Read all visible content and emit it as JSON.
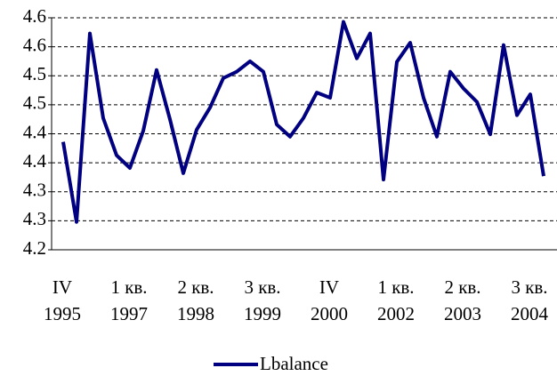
{
  "chart_data": {
    "type": "line",
    "categories": [
      "IV\n1995",
      null,
      null,
      null,
      null,
      "1 кв.\n1997",
      null,
      null,
      null,
      null,
      "2 кв.\n1998",
      null,
      null,
      null,
      null,
      "3 кв.\n1999",
      null,
      null,
      null,
      null,
      "IV\n2000",
      null,
      null,
      null,
      null,
      "1 кв.\n2002",
      null,
      null,
      null,
      null,
      "2 кв.\n2003",
      null,
      null,
      null,
      null,
      "3 кв.\n2004",
      null
    ],
    "series": [
      {
        "name": "Lbalance",
        "color": "#000080",
        "values": [
          4.386,
          4.248,
          4.573,
          4.427,
          4.363,
          4.341,
          4.405,
          4.51,
          4.425,
          4.332,
          4.407,
          4.445,
          4.496,
          4.507,
          4.525,
          4.507,
          4.416,
          4.395,
          4.427,
          4.471,
          4.462,
          4.593,
          4.53,
          4.573,
          4.321,
          4.524,
          4.557,
          4.462,
          4.395,
          4.507,
          4.478,
          4.455,
          4.399,
          4.553,
          4.432,
          4.468,
          4.327
        ]
      }
    ],
    "ylim": [
      4.2,
      4.6
    ],
    "yticks": [
      4.2,
      {
        "value": 4.25,
        "label": "4.3"
      },
      4.3,
      {
        "value": 4.35,
        "label": "4.4"
      },
      4.4,
      {
        "value": 4.45,
        "label": "4.5"
      },
      4.5,
      {
        "value": 4.55,
        "label": "4.6"
      },
      4.6
    ],
    "grid": true,
    "legend": "bottom"
  }
}
